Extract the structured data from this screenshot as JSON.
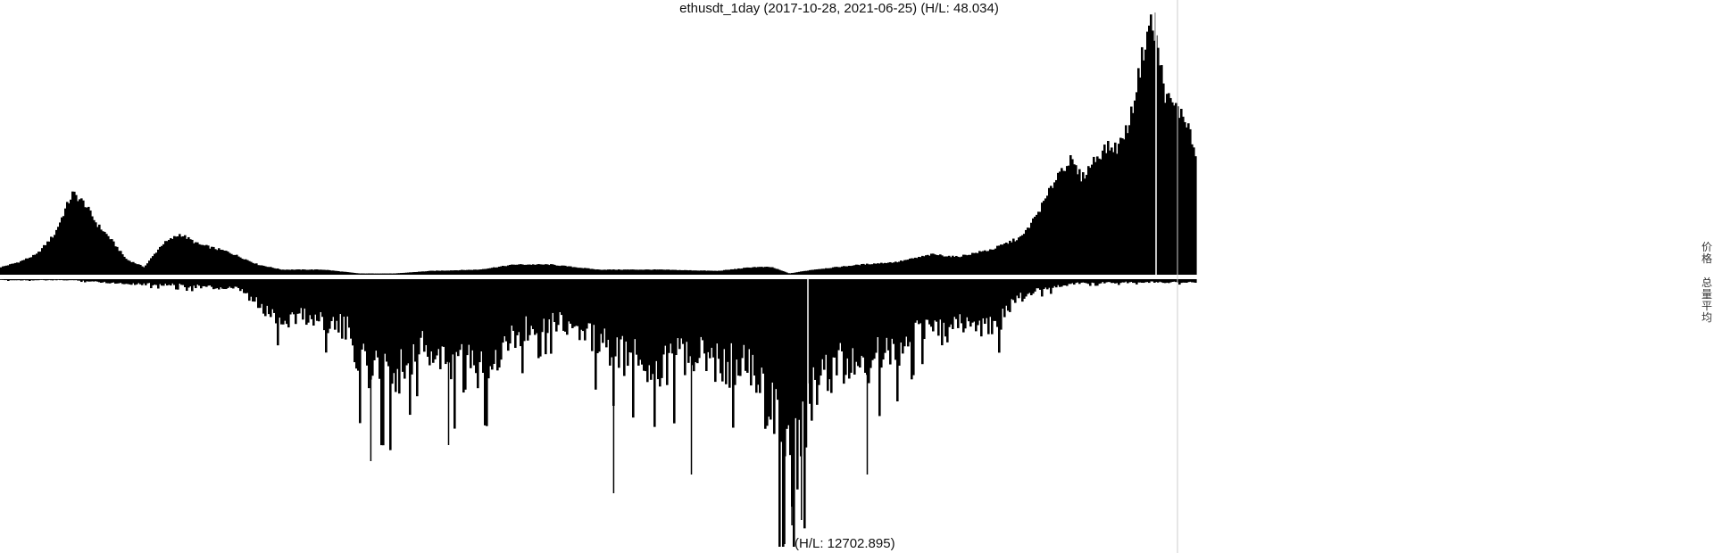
{
  "title": "ethusdt_1day (2017-10-28, 2021-06-25) (H/L: 48.034)",
  "bottom_label": "(H/L: 12702.895)",
  "legend": {
    "price": "价格",
    "volume": "总量平均"
  },
  "colors": {
    "bars": "#000000",
    "background": "#ffffff",
    "divider": "#cccccc"
  },
  "chart_data": {
    "type": "bar",
    "x_start": "2017-10-28",
    "x_end": "2021-06-25",
    "series": [
      {
        "name": "价格",
        "direction": "up",
        "high_low": 48.034,
        "envelope": [
          [
            0,
            0.03
          ],
          [
            0.015,
            0.05
          ],
          [
            0.03,
            0.08
          ],
          [
            0.045,
            0.16
          ],
          [
            0.055,
            0.27
          ],
          [
            0.06,
            0.32
          ],
          [
            0.065,
            0.3
          ],
          [
            0.07,
            0.28
          ],
          [
            0.08,
            0.2
          ],
          [
            0.09,
            0.15
          ],
          [
            0.105,
            0.06
          ],
          [
            0.12,
            0.03
          ],
          [
            0.135,
            0.12
          ],
          [
            0.15,
            0.16
          ],
          [
            0.165,
            0.12
          ],
          [
            0.19,
            0.09
          ],
          [
            0.215,
            0.04
          ],
          [
            0.235,
            0.02
          ],
          [
            0.27,
            0.02
          ],
          [
            0.3,
            0.005
          ],
          [
            0.33,
            0.005
          ],
          [
            0.36,
            0.015
          ],
          [
            0.4,
            0.02
          ],
          [
            0.43,
            0.04
          ],
          [
            0.46,
            0.04
          ],
          [
            0.5,
            0.02
          ],
          [
            0.55,
            0.02
          ],
          [
            0.6,
            0.015
          ],
          [
            0.63,
            0.03
          ],
          [
            0.645,
            0.03
          ],
          [
            0.66,
            0.005
          ],
          [
            0.68,
            0.02
          ],
          [
            0.72,
            0.04
          ],
          [
            0.75,
            0.05
          ],
          [
            0.78,
            0.08
          ],
          [
            0.8,
            0.07
          ],
          [
            0.83,
            0.1
          ],
          [
            0.855,
            0.15
          ],
          [
            0.865,
            0.22
          ],
          [
            0.875,
            0.3
          ],
          [
            0.885,
            0.4
          ],
          [
            0.895,
            0.45
          ],
          [
            0.905,
            0.38
          ],
          [
            0.915,
            0.45
          ],
          [
            0.925,
            0.5
          ],
          [
            0.935,
            0.5
          ],
          [
            0.945,
            0.6
          ],
          [
            0.955,
            0.85
          ],
          [
            0.962,
            1.0
          ],
          [
            0.968,
            0.9
          ],
          [
            0.975,
            0.7
          ],
          [
            0.985,
            0.65
          ],
          [
            0.993,
            0.6
          ],
          [
            1,
            0.47
          ]
        ],
        "spikes": [
          [
            0.966,
            0.98
          ]
        ]
      },
      {
        "name": "总量平均",
        "direction": "down",
        "high_low": 12702.895,
        "envelope": [
          [
            0,
            0.005
          ],
          [
            0.06,
            0.005
          ],
          [
            0.1,
            0.02
          ],
          [
            0.15,
            0.03
          ],
          [
            0.2,
            0.05
          ],
          [
            0.22,
            0.15
          ],
          [
            0.235,
            0.2
          ],
          [
            0.25,
            0.17
          ],
          [
            0.27,
            0.2
          ],
          [
            0.29,
            0.25
          ],
          [
            0.3,
            0.4
          ],
          [
            0.31,
            0.45
          ],
          [
            0.33,
            0.48
          ],
          [
            0.35,
            0.32
          ],
          [
            0.37,
            0.4
          ],
          [
            0.39,
            0.45
          ],
          [
            0.41,
            0.4
          ],
          [
            0.43,
            0.28
          ],
          [
            0.45,
            0.22
          ],
          [
            0.47,
            0.2
          ],
          [
            0.49,
            0.28
          ],
          [
            0.52,
            0.38
          ],
          [
            0.55,
            0.42
          ],
          [
            0.58,
            0.38
          ],
          [
            0.61,
            0.42
          ],
          [
            0.63,
            0.45
          ],
          [
            0.645,
            0.65
          ],
          [
            0.655,
            0.85
          ],
          [
            0.665,
            0.9
          ],
          [
            0.675,
            0.65
          ],
          [
            0.685,
            0.5
          ],
          [
            0.7,
            0.42
          ],
          [
            0.73,
            0.4
          ],
          [
            0.75,
            0.35
          ],
          [
            0.77,
            0.24
          ],
          [
            0.79,
            0.26
          ],
          [
            0.81,
            0.2
          ],
          [
            0.83,
            0.25
          ],
          [
            0.85,
            0.1
          ],
          [
            0.87,
            0.05
          ],
          [
            0.9,
            0.02
          ],
          [
            0.95,
            0.015
          ],
          [
            1,
            0.015
          ]
        ],
        "spikes": [
          [
            0.31,
            0.68
          ],
          [
            0.375,
            0.62
          ],
          [
            0.513,
            0.8
          ],
          [
            0.578,
            0.73
          ],
          [
            0.656,
            0.99
          ],
          [
            0.662,
            0.92
          ],
          [
            0.67,
            0.9
          ],
          [
            0.725,
            0.73
          ]
        ]
      }
    ]
  }
}
